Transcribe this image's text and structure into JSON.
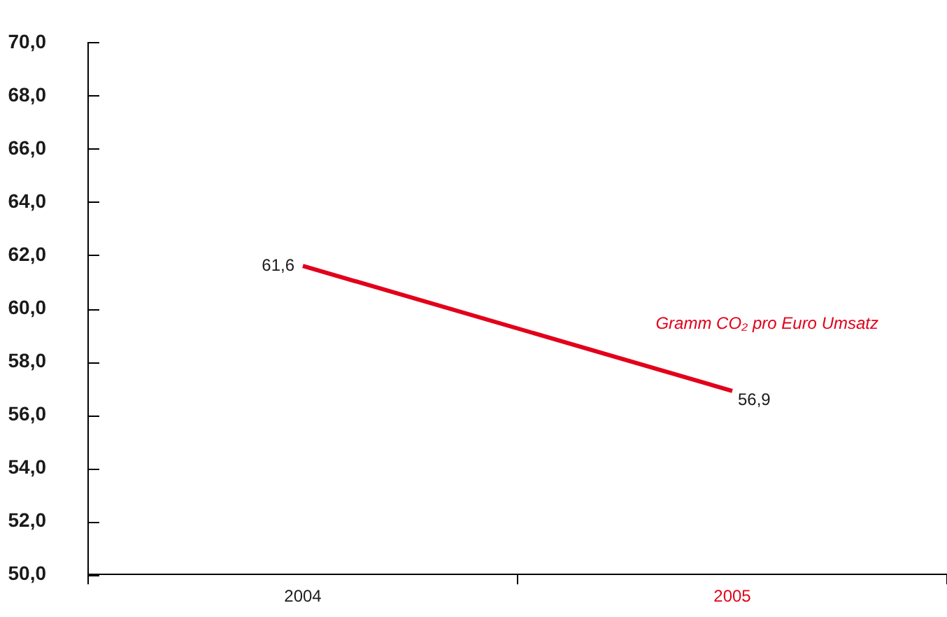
{
  "chart_data": {
    "type": "line",
    "categories": [
      "2004",
      "2005"
    ],
    "series": [
      {
        "name": "Gramm CO₂ pro Euro Umsatz",
        "color": "#e2001a",
        "values": [
          61.6,
          56.9
        ],
        "value_labels": [
          "61,6",
          "56,9"
        ]
      }
    ],
    "ylim": [
      50,
      70
    ],
    "yticks": [
      {
        "value": 50,
        "label": "50,0"
      },
      {
        "value": 52,
        "label": "52,0"
      },
      {
        "value": 54,
        "label": "54,0"
      },
      {
        "value": 56,
        "label": "56,0"
      },
      {
        "value": 58,
        "label": "58,0"
      },
      {
        "value": 60,
        "label": "60,0"
      },
      {
        "value": 62,
        "label": "62,0"
      },
      {
        "value": 64,
        "label": "64,0"
      },
      {
        "value": 66,
        "label": "66,0"
      },
      {
        "value": 68,
        "label": "68,0"
      },
      {
        "value": 70,
        "label": "70,0"
      }
    ]
  }
}
